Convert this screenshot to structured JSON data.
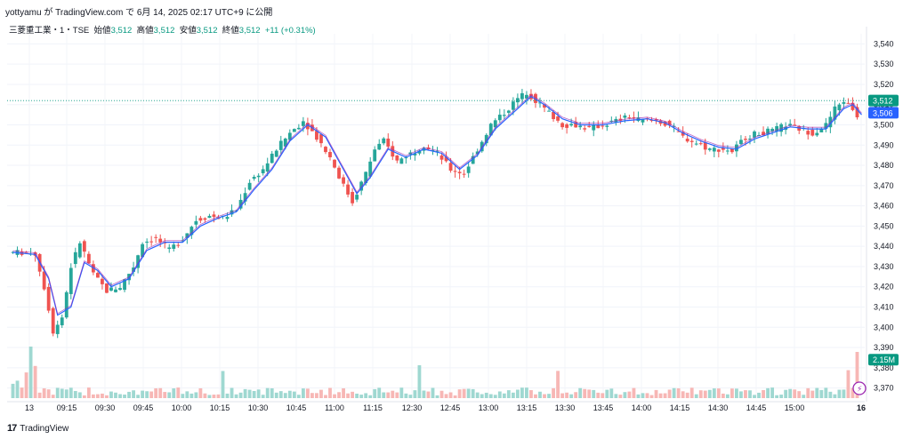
{
  "header": {
    "text": "yottyamu が TradingView.com で 6月 14, 2025 02:17 UTC+9 に公開"
  },
  "legend": {
    "symbol": "三菱重工業・1・TSE",
    "open_label": "始値",
    "open_value": "3,512",
    "high_label": "高値",
    "high_value": "3,512",
    "low_label": "安値",
    "low_value": "3,512",
    "close_label": "終値",
    "close_value": "3,512",
    "change": "+11 (+0.31%)"
  },
  "footer": {
    "brand": "TradingView"
  },
  "colors": {
    "up": "#26a69a",
    "down": "#ef5350",
    "ma": "#2962ff",
    "ma_alt": "#9c27b0",
    "price_badge": "#089981",
    "ma_badge": "#2962ff",
    "vol_up": "#9fd8d1",
    "vol_down": "#f7b7b5"
  },
  "chart_data": {
    "type": "candlestick",
    "y_ticks": [
      3370,
      3380,
      3390,
      3400,
      3410,
      3420,
      3430,
      3440,
      3450,
      3460,
      3470,
      3480,
      3490,
      3500,
      3510,
      3520,
      3530,
      3540
    ],
    "y_tick_labels": [
      "3,370",
      "3,380",
      "3,390",
      "3,400",
      "3,410",
      "3,420",
      "3,430",
      "3,440",
      "3,450",
      "3,460",
      "3,470",
      "3,480",
      "3,490",
      "3,500",
      "3,510",
      "3,520",
      "3,530",
      "3,540"
    ],
    "ylim": [
      3365,
      3545
    ],
    "x_labels": [
      "13",
      "09:15",
      "09:30",
      "09:45",
      "10:00",
      "10:15",
      "10:30",
      "10:45",
      "11:00",
      "11:15",
      "12:30",
      "12:45",
      "13:00",
      "13:15",
      "13:30",
      "13:45",
      "14:00",
      "14:15",
      "14:30",
      "14:45",
      "15:00",
      "16"
    ],
    "price_path": [
      [
        0,
        3437
      ],
      [
        4,
        3437
      ],
      [
        6,
        3436
      ],
      [
        8,
        3420
      ],
      [
        10,
        3398
      ],
      [
        12,
        3405
      ],
      [
        14,
        3430
      ],
      [
        16,
        3442
      ],
      [
        19,
        3426
      ],
      [
        22,
        3418
      ],
      [
        25,
        3420
      ],
      [
        28,
        3430
      ],
      [
        30,
        3442
      ],
      [
        33,
        3444
      ],
      [
        36,
        3438
      ],
      [
        39,
        3444
      ],
      [
        42,
        3453
      ],
      [
        45,
        3455
      ],
      [
        48,
        3454
      ],
      [
        51,
        3458
      ],
      [
        54,
        3472
      ],
      [
        57,
        3478
      ],
      [
        60,
        3488
      ],
      [
        63,
        3496
      ],
      [
        66,
        3502
      ],
      [
        69,
        3494
      ],
      [
        72,
        3484
      ],
      [
        75,
        3470
      ],
      [
        77,
        3462
      ],
      [
        80,
        3476
      ],
      [
        82,
        3488
      ],
      [
        84,
        3492
      ],
      [
        87,
        3482
      ],
      [
        90,
        3486
      ],
      [
        93,
        3490
      ],
      [
        96,
        3486
      ],
      [
        99,
        3478
      ],
      [
        102,
        3476
      ],
      [
        105,
        3488
      ],
      [
        108,
        3500
      ],
      [
        111,
        3506
      ],
      [
        114,
        3513
      ],
      [
        116,
        3516
      ],
      [
        118,
        3512
      ],
      [
        121,
        3506
      ],
      [
        124,
        3500
      ],
      [
        127,
        3500
      ],
      [
        130,
        3498
      ],
      [
        133,
        3500
      ],
      [
        136,
        3502
      ],
      [
        139,
        3504
      ],
      [
        142,
        3502
      ],
      [
        145,
        3502
      ],
      [
        148,
        3500
      ],
      [
        151,
        3494
      ],
      [
        154,
        3491
      ],
      [
        157,
        3488
      ],
      [
        160,
        3488
      ],
      [
        162,
        3487
      ],
      [
        165,
        3494
      ],
      [
        168,
        3496
      ],
      [
        171,
        3497
      ],
      [
        174,
        3500
      ],
      [
        177,
        3498
      ],
      [
        180,
        3496
      ],
      [
        183,
        3500
      ],
      [
        185,
        3508
      ],
      [
        187,
        3512
      ],
      [
        189,
        3508
      ],
      [
        190,
        3504
      ]
    ],
    "ma_path": [
      [
        0,
        3437
      ],
      [
        5,
        3436
      ],
      [
        8,
        3424
      ],
      [
        10,
        3406
      ],
      [
        13,
        3410
      ],
      [
        16,
        3432
      ],
      [
        19,
        3428
      ],
      [
        22,
        3420
      ],
      [
        26,
        3424
      ],
      [
        30,
        3438
      ],
      [
        34,
        3442
      ],
      [
        38,
        3442
      ],
      [
        42,
        3450
      ],
      [
        46,
        3454
      ],
      [
        50,
        3457
      ],
      [
        54,
        3468
      ],
      [
        58,
        3478
      ],
      [
        62,
        3492
      ],
      [
        66,
        3500
      ],
      [
        70,
        3494
      ],
      [
        74,
        3478
      ],
      [
        77,
        3466
      ],
      [
        80,
        3474
      ],
      [
        84,
        3488
      ],
      [
        88,
        3484
      ],
      [
        92,
        3488
      ],
      [
        96,
        3486
      ],
      [
        100,
        3478
      ],
      [
        104,
        3485
      ],
      [
        108,
        3498
      ],
      [
        112,
        3506
      ],
      [
        116,
        3514
      ],
      [
        119,
        3510
      ],
      [
        123,
        3503
      ],
      [
        127,
        3500
      ],
      [
        132,
        3500
      ],
      [
        137,
        3502
      ],
      [
        142,
        3503
      ],
      [
        146,
        3501
      ],
      [
        150,
        3496
      ],
      [
        154,
        3492
      ],
      [
        158,
        3489
      ],
      [
        162,
        3488
      ],
      [
        166,
        3493
      ],
      [
        170,
        3496
      ],
      [
        174,
        3499
      ],
      [
        178,
        3498
      ],
      [
        182,
        3498
      ],
      [
        186,
        3508
      ],
      [
        188,
        3510
      ],
      [
        190,
        3505
      ]
    ],
    "last_price_label": "3,512",
    "ma_value_label": "3,506",
    "volume_label": "2.15M"
  }
}
